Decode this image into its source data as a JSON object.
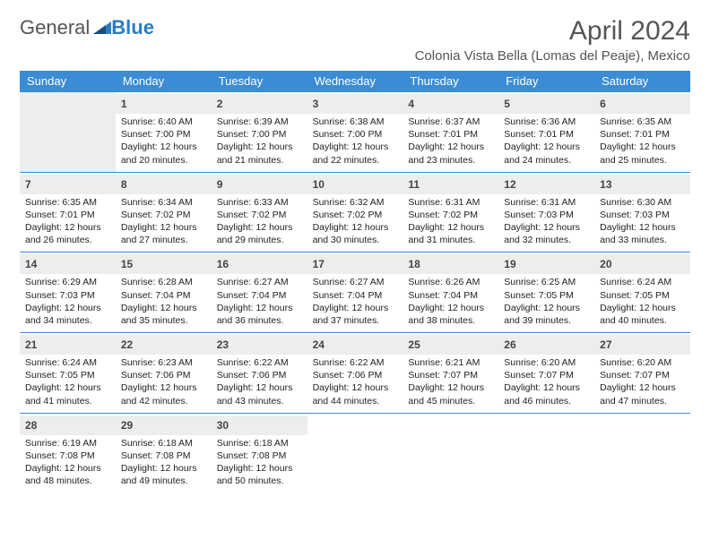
{
  "logo": {
    "text1": "General",
    "text2": "Blue"
  },
  "title": "April 2024",
  "location": "Colonia Vista Bella (Lomas del Peaje), Mexico",
  "colors": {
    "header_bg": "#3b8cd4",
    "header_text": "#ffffff",
    "daynum_bg": "#eceded",
    "border": "#3b8cd4",
    "body_text": "#222222",
    "title_text": "#555555"
  },
  "weekdays": [
    "Sunday",
    "Monday",
    "Tuesday",
    "Wednesday",
    "Thursday",
    "Friday",
    "Saturday"
  ],
  "leading_blanks": 1,
  "days": [
    {
      "n": 1,
      "sr": "6:40 AM",
      "ss": "7:00 PM",
      "dl": "12 hours and 20 minutes."
    },
    {
      "n": 2,
      "sr": "6:39 AM",
      "ss": "7:00 PM",
      "dl": "12 hours and 21 minutes."
    },
    {
      "n": 3,
      "sr": "6:38 AM",
      "ss": "7:00 PM",
      "dl": "12 hours and 22 minutes."
    },
    {
      "n": 4,
      "sr": "6:37 AM",
      "ss": "7:01 PM",
      "dl": "12 hours and 23 minutes."
    },
    {
      "n": 5,
      "sr": "6:36 AM",
      "ss": "7:01 PM",
      "dl": "12 hours and 24 minutes."
    },
    {
      "n": 6,
      "sr": "6:35 AM",
      "ss": "7:01 PM",
      "dl": "12 hours and 25 minutes."
    },
    {
      "n": 7,
      "sr": "6:35 AM",
      "ss": "7:01 PM",
      "dl": "12 hours and 26 minutes."
    },
    {
      "n": 8,
      "sr": "6:34 AM",
      "ss": "7:02 PM",
      "dl": "12 hours and 27 minutes."
    },
    {
      "n": 9,
      "sr": "6:33 AM",
      "ss": "7:02 PM",
      "dl": "12 hours and 29 minutes."
    },
    {
      "n": 10,
      "sr": "6:32 AM",
      "ss": "7:02 PM",
      "dl": "12 hours and 30 minutes."
    },
    {
      "n": 11,
      "sr": "6:31 AM",
      "ss": "7:02 PM",
      "dl": "12 hours and 31 minutes."
    },
    {
      "n": 12,
      "sr": "6:31 AM",
      "ss": "7:03 PM",
      "dl": "12 hours and 32 minutes."
    },
    {
      "n": 13,
      "sr": "6:30 AM",
      "ss": "7:03 PM",
      "dl": "12 hours and 33 minutes."
    },
    {
      "n": 14,
      "sr": "6:29 AM",
      "ss": "7:03 PM",
      "dl": "12 hours and 34 minutes."
    },
    {
      "n": 15,
      "sr": "6:28 AM",
      "ss": "7:04 PM",
      "dl": "12 hours and 35 minutes."
    },
    {
      "n": 16,
      "sr": "6:27 AM",
      "ss": "7:04 PM",
      "dl": "12 hours and 36 minutes."
    },
    {
      "n": 17,
      "sr": "6:27 AM",
      "ss": "7:04 PM",
      "dl": "12 hours and 37 minutes."
    },
    {
      "n": 18,
      "sr": "6:26 AM",
      "ss": "7:04 PM",
      "dl": "12 hours and 38 minutes."
    },
    {
      "n": 19,
      "sr": "6:25 AM",
      "ss": "7:05 PM",
      "dl": "12 hours and 39 minutes."
    },
    {
      "n": 20,
      "sr": "6:24 AM",
      "ss": "7:05 PM",
      "dl": "12 hours and 40 minutes."
    },
    {
      "n": 21,
      "sr": "6:24 AM",
      "ss": "7:05 PM",
      "dl": "12 hours and 41 minutes."
    },
    {
      "n": 22,
      "sr": "6:23 AM",
      "ss": "7:06 PM",
      "dl": "12 hours and 42 minutes."
    },
    {
      "n": 23,
      "sr": "6:22 AM",
      "ss": "7:06 PM",
      "dl": "12 hours and 43 minutes."
    },
    {
      "n": 24,
      "sr": "6:22 AM",
      "ss": "7:06 PM",
      "dl": "12 hours and 44 minutes."
    },
    {
      "n": 25,
      "sr": "6:21 AM",
      "ss": "7:07 PM",
      "dl": "12 hours and 45 minutes."
    },
    {
      "n": 26,
      "sr": "6:20 AM",
      "ss": "7:07 PM",
      "dl": "12 hours and 46 minutes."
    },
    {
      "n": 27,
      "sr": "6:20 AM",
      "ss": "7:07 PM",
      "dl": "12 hours and 47 minutes."
    },
    {
      "n": 28,
      "sr": "6:19 AM",
      "ss": "7:08 PM",
      "dl": "12 hours and 48 minutes."
    },
    {
      "n": 29,
      "sr": "6:18 AM",
      "ss": "7:08 PM",
      "dl": "12 hours and 49 minutes."
    },
    {
      "n": 30,
      "sr": "6:18 AM",
      "ss": "7:08 PM",
      "dl": "12 hours and 50 minutes."
    }
  ],
  "labels": {
    "sunrise": "Sunrise:",
    "sunset": "Sunset:",
    "daylight": "Daylight:"
  }
}
